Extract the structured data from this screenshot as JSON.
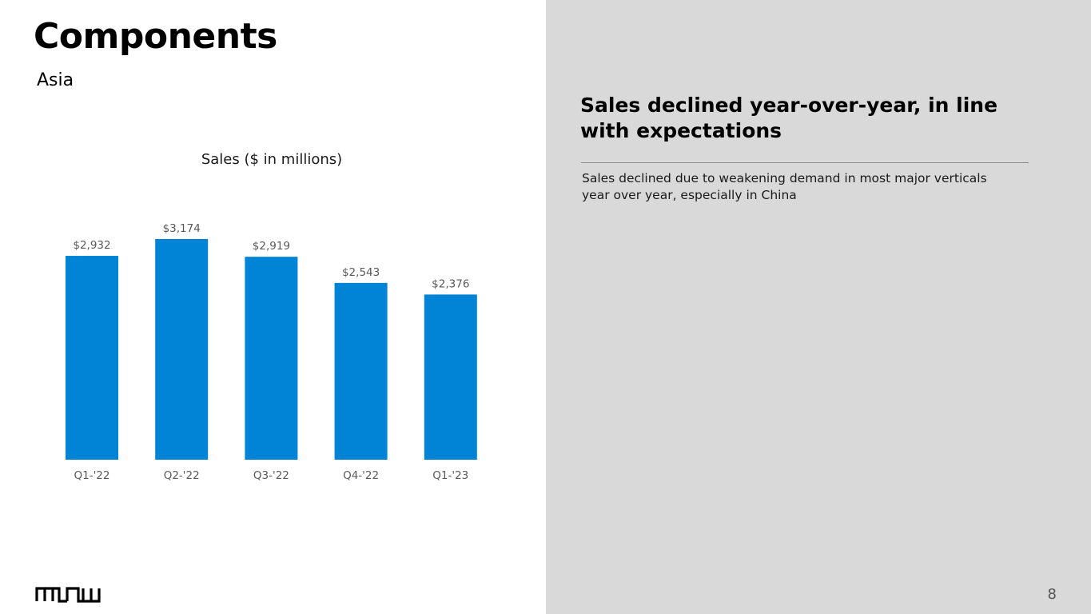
{
  "slide": {
    "title": "Components",
    "subtitle": "Asia",
    "headline": "Sales declined year-over-year, in line with expectations",
    "body": "Sales declined due to weakening demand in most major verticals year over year, especially in China",
    "page_number": "8",
    "logo_text": "ARROW"
  },
  "colors": {
    "bar": "#0284d6",
    "right_panel": "#d9d9d9"
  },
  "chart_data": {
    "type": "bar",
    "title": "Sales ($ in millions)",
    "categories": [
      "Q1-'22",
      "Q2-'22",
      "Q3-'22",
      "Q4-'22",
      "Q1-'23"
    ],
    "values": [
      2932,
      3174,
      2919,
      2543,
      2376
    ],
    "data_labels": [
      "$2,932",
      "$3,174",
      "$2,919",
      "$2,543",
      "$2,376"
    ],
    "ylim": [
      0,
      3174
    ],
    "grid": false,
    "legend": "none"
  }
}
